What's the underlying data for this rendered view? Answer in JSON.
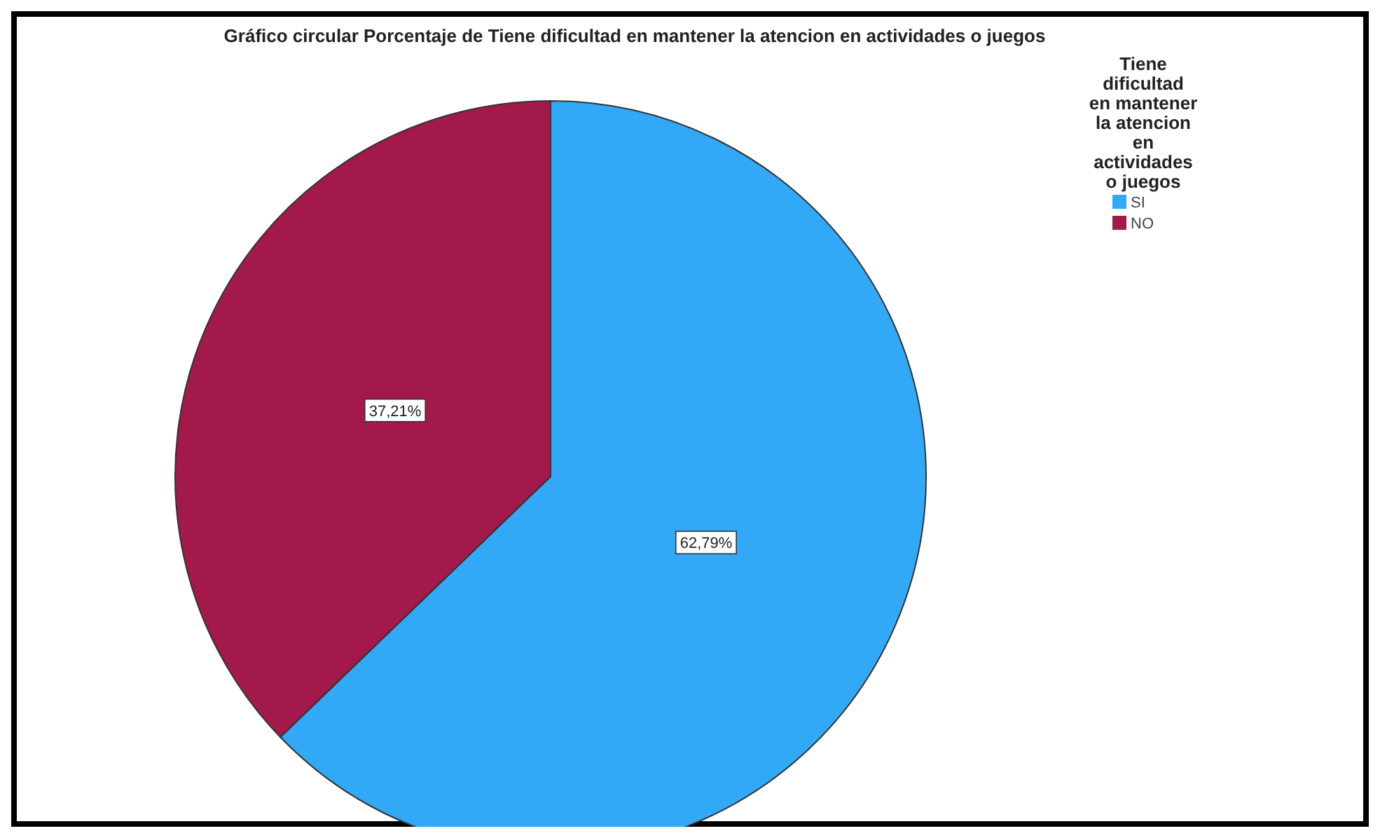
{
  "chart_data": {
    "type": "pie",
    "title": "Gráfico circular Porcentaje de Tiene dificultad en mantener la atencion en actividades o juegos",
    "legend_title": "Tiene dificultad en mantener la atencion en actividades o juegos",
    "categories": [
      "SI",
      "NO"
    ],
    "values": [
      62.79,
      37.21
    ],
    "colors": [
      "#32a9f7",
      "#a3194b"
    ],
    "value_labels": [
      "62,79%",
      "37,21%"
    ],
    "legend": "right"
  }
}
